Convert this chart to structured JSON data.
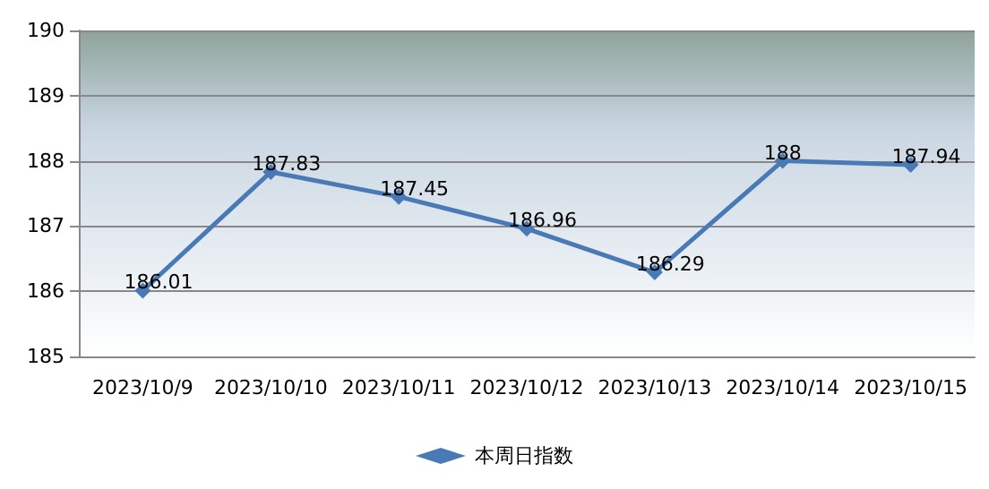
{
  "chart_data": {
    "type": "line",
    "categories": [
      "2023/10/9",
      "2023/10/10",
      "2023/10/11",
      "2023/10/12",
      "2023/10/13",
      "2023/10/14",
      "2023/10/15"
    ],
    "series": [
      {
        "name": "本周日指数",
        "color": "#4a7ab5",
        "values": [
          186.01,
          187.83,
          187.45,
          186.96,
          186.29,
          188,
          187.94
        ]
      }
    ],
    "ylim": [
      185,
      190
    ],
    "yticks": [
      185,
      186,
      187,
      188,
      189,
      190
    ],
    "grid": "y",
    "legend": "bottom",
    "marker": "diamond",
    "data_labels": true
  }
}
